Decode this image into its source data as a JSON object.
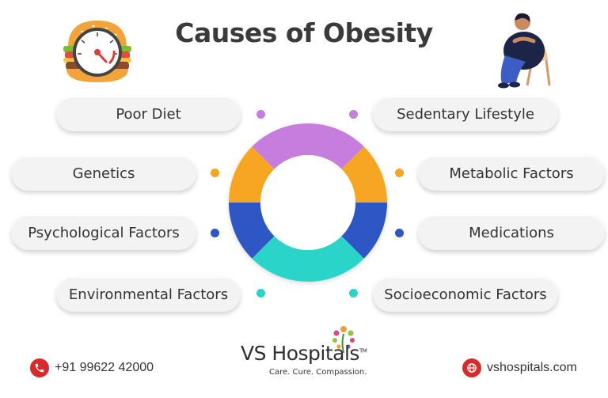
{
  "title": "Causes of Obesity",
  "causes_left": [
    {
      "label": "Poor Diet",
      "color": "#c77dde"
    },
    {
      "label": "Genetics",
      "color": "#f6a623"
    },
    {
      "label": "Psychological Factors",
      "color": "#2e56c4"
    },
    {
      "label": "Environmental Factors",
      "color": "#2ad4c8"
    }
  ],
  "causes_right": [
    {
      "label": "Sedentary Lifestyle",
      "color": "#c77dde"
    },
    {
      "label": "Metabolic Factors",
      "color": "#f6a623"
    },
    {
      "label": "Medications",
      "color": "#2e56c4"
    },
    {
      "label": "Socioeconomic Factors",
      "color": "#2ad4c8"
    }
  ],
  "footer": {
    "phone": "+91 99622 42000",
    "website": "vshospitals.com",
    "logo_name": "VS Hospitals",
    "logo_tm": "TM",
    "tagline": "Care. Cure. Compassion."
  },
  "icons": {
    "illustration_left": "burger-speedometer-icon",
    "illustration_right": "person-in-chair-icon",
    "phone": "phone-icon",
    "web": "globe-icon"
  }
}
